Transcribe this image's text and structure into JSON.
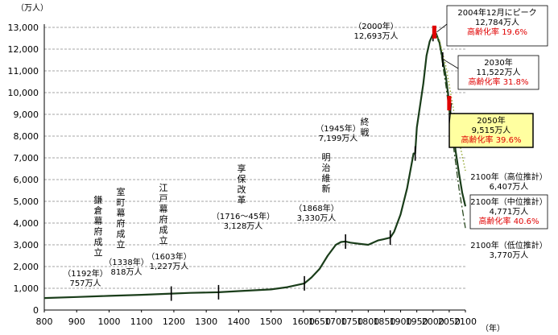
{
  "chart_data": {
    "type": "line",
    "ylabel": "（万人）",
    "xlabel": "（年）",
    "ylim": [
      0,
      13000
    ],
    "xlim": [
      800,
      2100
    ],
    "yticks": [
      0,
      1000,
      2000,
      3000,
      4000,
      5000,
      6000,
      7000,
      8000,
      9000,
      10000,
      11000,
      12000,
      13000
    ],
    "ytick_labels": [
      "0",
      "1,000",
      "2,000",
      "3,000",
      "4,000",
      "5,000",
      "6,000",
      "7,000",
      "8,000",
      "9,000",
      "10,000",
      "11,000",
      "12,000",
      "13,000"
    ],
    "xticks": [
      800,
      900,
      1000,
      1100,
      1200,
      1300,
      1400,
      1500,
      1600,
      1650,
      1700,
      1750,
      1800,
      1850,
      1900,
      1950,
      2000,
      2050,
      2100
    ],
    "xtick_labels": [
      "800",
      "900",
      "1000",
      "1100",
      "1200",
      "1300",
      "1400",
      "1500",
      "1600",
      "1650",
      "1700",
      "1750",
      "1800",
      "1850",
      "1900",
      "1950",
      "2000",
      "2050",
      "2100"
    ],
    "grid": "horizontal dashed",
    "series": [
      {
        "name": "",
        "color": "#1a3d1a",
        "style": "solid",
        "x": [
          800,
          900,
          1000,
          1100,
          1192,
          1250,
          1338,
          1400,
          1500,
          1550,
          1603,
          1625,
          1650,
          1675,
          1700,
          1716,
          1730,
          1745,
          1770,
          1800,
          1830,
          1845,
          1868,
          1880,
          1900,
          1920,
          1930,
          1940,
          1945,
          1950,
          1960,
          1970,
          1980,
          1990,
          2000,
          2004,
          2010,
          2020,
          2030
        ],
        "values": [
          551,
          600,
          650,
          700,
          757,
          790,
          818,
          870,
          950,
          1050,
          1227,
          1500,
          1900,
          2500,
          3000,
          3128,
          3150,
          3100,
          3050,
          3000,
          3200,
          3250,
          3330,
          3600,
          4400,
          5600,
          6400,
          7200,
          7199,
          8400,
          9400,
          10400,
          11700,
          12360,
          12693,
          12784,
          12700,
          12300,
          11522
        ]
      },
      {
        "name": "2100年（中位推計）",
        "color": "#1a3d1a",
        "style": "solid",
        "x": [
          2030,
          2040,
          2050,
          2060,
          2070,
          2080,
          2090,
          2100
        ],
        "values": [
          11522,
          10700,
          9515,
          8400,
          7300,
          6300,
          5400,
          4771
        ]
      },
      {
        "name": "2100年（高位推計）",
        "color": "#8aa020",
        "style": "dotted",
        "x": [
          2004,
          2020,
          2040,
          2060,
          2080,
          2100
        ],
        "values": [
          12784,
          12400,
          11200,
          9500,
          7800,
          6407
        ]
      },
      {
        "name": "2100年（低位推計）",
        "color": "#2a4a20",
        "style": "dashdot",
        "x": [
          2004,
          2020,
          2040,
          2060,
          2080,
          2100
        ],
        "values": [
          12784,
          12250,
          10300,
          7900,
          5600,
          3770
        ]
      }
    ],
    "vertical_labels": [
      {
        "text": "鎌倉幕府成立",
        "year": 1192
      },
      {
        "text": "室町幕府成立",
        "year": 1338
      },
      {
        "text": "江戸幕府成立",
        "year": 1603
      },
      {
        "text": "享保改革",
        "year": 1716
      },
      {
        "text": "明治維新",
        "year": 1868
      },
      {
        "text": "終戦",
        "year": 1945
      }
    ],
    "annotations": [
      {
        "line1": "（1192年）",
        "line2": "757万人"
      },
      {
        "line1": "（1338年）",
        "line2": "818万人"
      },
      {
        "line1": "（1603年）",
        "line2": "1,227万人"
      },
      {
        "line1": "（1716〜45年）",
        "line2": "3,128万人"
      },
      {
        "line1": "（1868年）",
        "line2": "3,330万人"
      },
      {
        "line1": "（1945年）",
        "line2": "7,199万人"
      },
      {
        "line1": "（2000年）",
        "line2": "12,693万人"
      }
    ],
    "callouts": {
      "peak": {
        "line1": "2004年12月にピーク",
        "line2": "12,784万人",
        "line3": "高齢化率 19.6%"
      },
      "y2030": {
        "line1": "2030年",
        "line2": "11,522万人",
        "line3": "高齢化率 31.8%"
      },
      "y2050": {
        "line1": "2050年",
        "line2": "9,515万人",
        "line3": "高齢化率 39.6%"
      },
      "high": {
        "line1": "2100年（高位推計）",
        "line2": "6,407万人"
      },
      "mid": {
        "line1": "2100年（中位推計）",
        "line2": "4,771万人",
        "line3": "高齢化率 40.6%"
      },
      "low": {
        "line1": "2100年（低位推計）",
        "line2": "3,770万人"
      }
    },
    "colors": {
      "line": "#1a3d1a",
      "highlight": "#e00000",
      "callout_bg": "#ffffa0"
    }
  }
}
